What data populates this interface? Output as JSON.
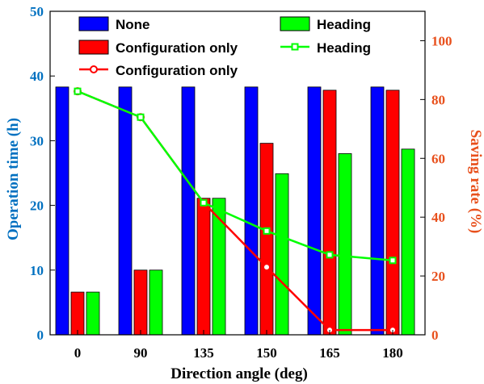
{
  "chart_data": {
    "type": "bar",
    "categories": [
      "0",
      "90",
      "135",
      "150",
      "165",
      "180"
    ],
    "xlabel": "Direction angle (deg)",
    "ylabel_left": "Operation time (h)",
    "ylabel_right": "Saving rate (%)",
    "ylim_left": [
      0,
      50
    ],
    "yticks_left": [
      "0",
      "10",
      "20",
      "30",
      "40",
      "50"
    ],
    "ylim_right": [
      0,
      110
    ],
    "yticks_right": [
      "0",
      "20",
      "40",
      "60",
      "80",
      "100"
    ],
    "grid": false,
    "legend_placement": "top",
    "bar_series": [
      {
        "name": "None",
        "color": "#0000ff",
        "values": [
          38.3,
          38.3,
          38.3,
          38.3,
          38.3,
          38.3
        ]
      },
      {
        "name": "Configuration only",
        "color": "#ff0000",
        "values": [
          6.6,
          10.0,
          21.1,
          29.6,
          37.8,
          37.8
        ]
      },
      {
        "name": "Heading",
        "color": "#00ff00",
        "values": [
          6.6,
          10.0,
          21.1,
          24.9,
          28.0,
          28.7
        ]
      }
    ],
    "line_series": [
      {
        "name": "Configuration only",
        "color": "#ff0000",
        "marker": "circle",
        "values": [
          82.8,
          74.0,
          44.9,
          23.0,
          1.6,
          1.6
        ]
      },
      {
        "name": "Heading",
        "color": "#00ff00",
        "marker": "square",
        "values": [
          82.8,
          74.0,
          44.9,
          35.3,
          27.2,
          25.3
        ]
      }
    ],
    "left_axis_color": "#0070c0",
    "right_axis_color": "#e8501c"
  }
}
